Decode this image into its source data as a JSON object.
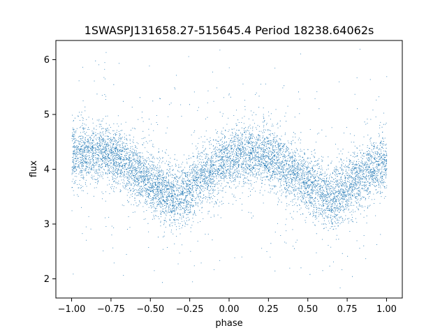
{
  "chart_data": {
    "type": "scatter",
    "title": "1SWASPJ131658.27-515645.4 Period 18238.64062s",
    "xlabel": "phase",
    "ylabel": "flux",
    "xlim": [
      -1.1,
      1.1
    ],
    "ylim": [
      1.65,
      6.35
    ],
    "xticks": [
      -1.0,
      -0.75,
      -0.5,
      -0.25,
      0.0,
      0.25,
      0.5,
      0.75,
      1.0
    ],
    "xtick_labels": [
      "−1.00",
      "−0.75",
      "−0.50",
      "−0.25",
      "0.00",
      "0.25",
      "0.50",
      "0.75",
      "1.00"
    ],
    "yticks": [
      2,
      3,
      4,
      5,
      6
    ],
    "ytick_labels": [
      "2",
      "3",
      "4",
      "5",
      "6"
    ],
    "grid": false,
    "marker_color": "#1f77b4",
    "series": [
      {
        "phase": [
          -1.0,
          -0.9,
          -0.8,
          -0.7,
          -0.6,
          -0.5,
          -0.4,
          -0.35,
          -0.3,
          -0.2,
          -0.1,
          0.0,
          0.1,
          0.15,
          0.2,
          0.3,
          0.4,
          0.5,
          0.6,
          0.65,
          0.7,
          0.8,
          0.9,
          1.0
        ],
        "flux_mean": [
          4.25,
          4.3,
          4.3,
          4.2,
          4.0,
          3.75,
          3.55,
          3.5,
          3.55,
          3.8,
          4.0,
          4.2,
          4.3,
          4.3,
          4.25,
          4.15,
          3.95,
          3.75,
          3.55,
          3.5,
          3.55,
          3.8,
          4.0,
          4.15
        ],
        "flux_spread": 0.55,
        "n_points": 9000
      }
    ]
  }
}
